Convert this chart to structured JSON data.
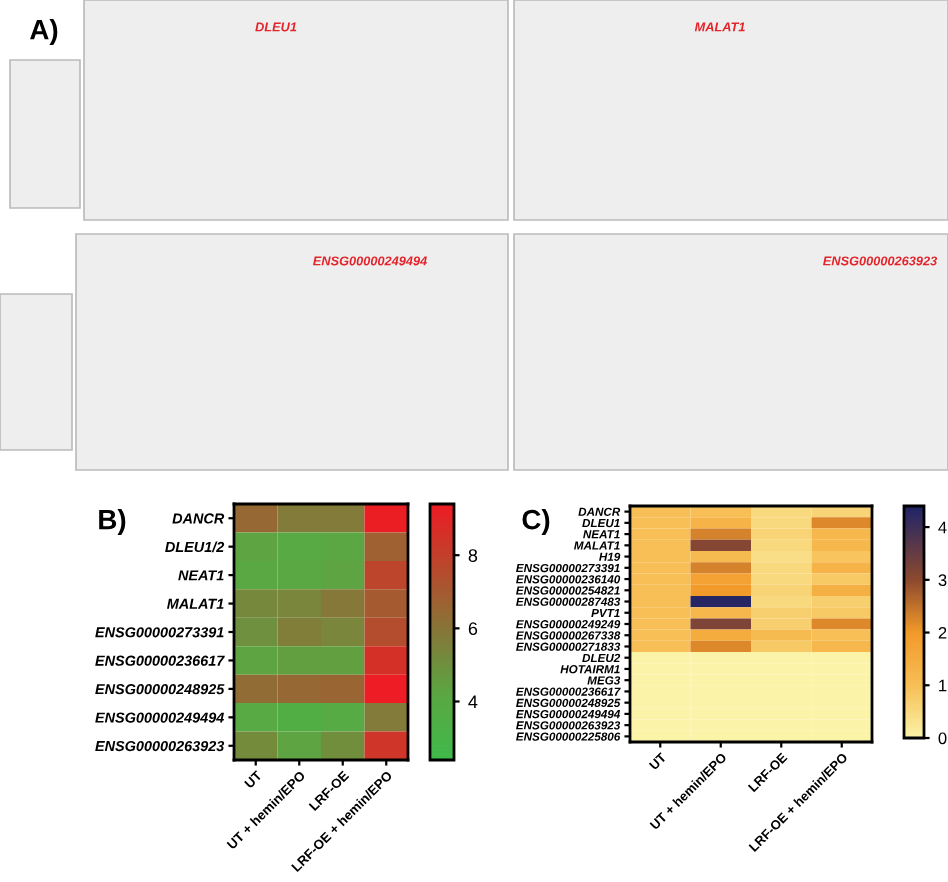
{
  "chart_data": [
    {
      "type": "other",
      "title": "A)",
      "annotations": [
        "DLEU1",
        "MALAT1",
        "ENSG00000249494",
        "ENSG00000263923"
      ]
    },
    {
      "type": "heatmap",
      "title": "B)",
      "categories": [
        "UT",
        "UT + hemin/EPO",
        "LRF-OE",
        "LRF-OE + hemin/EPO"
      ],
      "y_categories": [
        "DANCR",
        "DLEU1/2",
        "NEAT1",
        "MALAT1",
        "ENSG00000273391",
        "ENSG00000236617",
        "ENSG00000248925",
        "ENSG00000249494",
        "ENSG00000263923"
      ],
      "cells": [
        [
          6.5,
          5.8,
          5.8,
          9.3
        ],
        [
          4.3,
          4.0,
          4.2,
          6.8
        ],
        [
          4.1,
          4.1,
          4.3,
          7.8
        ],
        [
          5.3,
          5.4,
          5.9,
          7.0
        ],
        [
          5.0,
          5.7,
          5.4,
          7.5
        ],
        [
          4.3,
          4.5,
          4.5,
          8.6
        ],
        [
          6.3,
          6.5,
          6.6,
          9.4
        ],
        [
          4.0,
          3.6,
          3.9,
          5.8
        ],
        [
          5.2,
          4.3,
          5.1,
          8.4
        ]
      ],
      "clim": [
        2.4,
        9.4
      ],
      "cticks": [
        4,
        6,
        8
      ]
    },
    {
      "type": "heatmap",
      "title": "C)",
      "categories": [
        "UT",
        "UT + hemin/EPO",
        "LRF-OE",
        "LRF-OE + hemin/EPO"
      ],
      "y_categories": [
        "DANCR",
        "DLEU1",
        "NEAT1",
        "MALAT1",
        "H19",
        "ENSG00000273391",
        "ENSG00000236140",
        "ENSG00000254821",
        "ENSG00000287483",
        "PVT1",
        "ENSG00000249249",
        "ENSG00000267338",
        "ENSG00000271833",
        "DLEU2",
        "HOTAIRM1",
        "MEG3",
        "ENSG00000236617",
        "ENSG00000248925",
        "ENSG00000249494",
        "ENSG00000263923",
        "ENSG00000225806"
      ],
      "cells": [
        [
          1,
          1.0,
          0.5,
          0.6
        ],
        [
          1,
          1.3,
          0.5,
          2.2
        ],
        [
          1,
          2.3,
          0.6,
          1.2
        ],
        [
          1,
          3.1,
          0.5,
          1.2
        ],
        [
          1,
          1.1,
          0.4,
          0.9
        ],
        [
          1,
          2.3,
          0.5,
          1.3
        ],
        [
          1,
          1.8,
          0.5,
          0.8
        ],
        [
          1,
          2.0,
          0.6,
          1.4
        ],
        [
          1,
          4.3,
          0.5,
          0.7
        ],
        [
          1,
          1.2,
          0.7,
          0.8
        ],
        [
          1,
          3.2,
          0.7,
          2.2
        ],
        [
          1,
          1.5,
          1.1,
          1.0
        ],
        [
          1,
          2.2,
          0.8,
          1.2
        ],
        [
          0,
          0,
          0,
          0
        ],
        [
          0,
          0,
          0,
          0
        ],
        [
          0,
          0,
          0,
          0
        ],
        [
          0,
          0,
          0,
          0
        ],
        [
          0,
          0,
          0,
          0
        ],
        [
          0,
          0,
          0,
          0
        ],
        [
          0,
          0,
          0,
          0
        ],
        [
          0,
          0,
          0,
          0
        ]
      ],
      "clim": [
        0,
        4.4
      ],
      "cticks": [
        0,
        1,
        2,
        3,
        4
      ]
    }
  ]
}
